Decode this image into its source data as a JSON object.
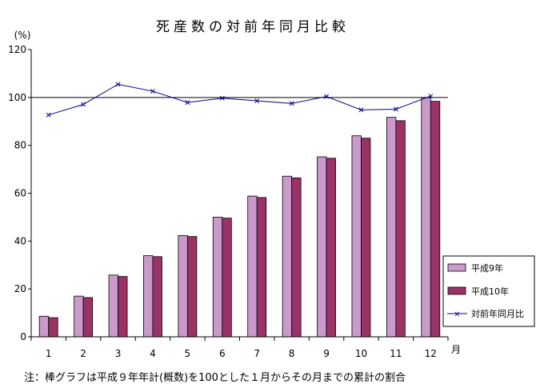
{
  "chart_data": {
    "type": "bar",
    "title": "死産数の対前年同月比較",
    "ylabel": "(%)",
    "xlabel": "月",
    "ylim": [
      0,
      120
    ],
    "yticks": [
      0,
      20,
      40,
      60,
      80,
      100,
      120
    ],
    "categories": [
      "1",
      "2",
      "3",
      "4",
      "5",
      "6",
      "7",
      "8",
      "9",
      "10",
      "11",
      "12"
    ],
    "series": [
      {
        "name": "平成9年",
        "kind": "bar",
        "color": "#cc99cc",
        "values": [
          8.6,
          17.0,
          25.8,
          33.9,
          42.3,
          50.0,
          58.8,
          67.1,
          75.2,
          84.0,
          91.7,
          100.0
        ]
      },
      {
        "name": "平成10年",
        "kind": "bar",
        "color": "#993366",
        "values": [
          8.0,
          16.4,
          25.2,
          33.5,
          41.9,
          49.6,
          58.2,
          66.4,
          74.6,
          83.0,
          90.3,
          98.4
        ]
      },
      {
        "name": "対前年同月比",
        "kind": "line",
        "color": "#000080",
        "marker": "x",
        "values": [
          92.7,
          97.1,
          105.5,
          102.6,
          97.9,
          99.7,
          98.6,
          97.5,
          100.4,
          94.8,
          95.1,
          100.6
        ]
      }
    ],
    "reference_line": 100,
    "legend_position": "right",
    "grid": false
  },
  "note": "注：棒グラフは平成９年年計(概数)を100とした１月からその月までの累計の割合"
}
